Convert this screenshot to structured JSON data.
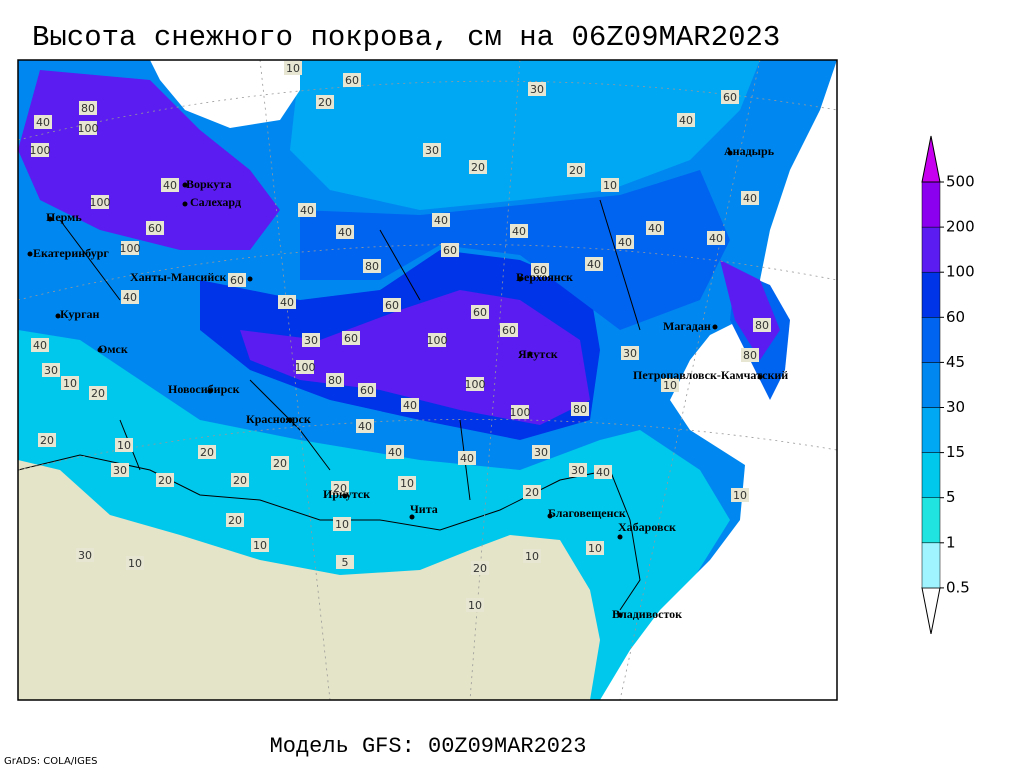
{
  "title": "Высота снежного покрова, см на 06Z09MAR2023",
  "subtitle": "Модель GFS: 00Z09MAR2023",
  "credit": "GrADS: COLA/IGES",
  "legend": {
    "levels": [
      0.5,
      1,
      5,
      15,
      30,
      45,
      60,
      100,
      200,
      500
    ],
    "colors": [
      "#ffffff",
      "#a0f4ff",
      "#20e4e0",
      "#00c8ec",
      "#00a8f4",
      "#0088f0",
      "#0064f0",
      "#0034e8",
      "#5a1cf0",
      "#8c00f0",
      "#c800f0"
    ]
  },
  "cities": [
    "Воркута",
    "Салехард",
    "Пермь",
    "Екатеринбург",
    "Ханты-Мансийск",
    "Курган",
    "Омск",
    "Новосибирск",
    "Красноярск",
    "Иркутск",
    "Чита",
    "Верхоянск",
    "Якутск",
    "Магадан",
    "Анадырь",
    "Петропавловск-Камчатский",
    "Благовещенск",
    "Хабаровск",
    "Владивосток"
  ],
  "map_values": [
    10,
    60,
    20,
    30,
    30,
    20,
    20,
    10,
    40,
    60,
    40,
    80,
    100,
    100,
    100,
    60,
    100,
    40,
    40,
    40,
    40,
    40,
    60,
    80,
    60,
    40,
    40,
    40,
    40,
    60,
    40,
    60,
    60,
    60,
    100,
    60,
    30,
    100,
    80,
    60,
    100,
    100,
    80,
    40,
    40,
    30,
    10,
    20,
    20,
    10,
    20,
    20,
    40,
    40,
    30,
    30,
    40,
    30,
    20,
    20,
    20,
    10,
    20,
    20,
    10,
    10,
    10,
    5,
    20,
    10,
    10,
    10,
    10,
    10,
    40,
    80,
    80,
    30,
    40,
    40,
    30
  ]
}
